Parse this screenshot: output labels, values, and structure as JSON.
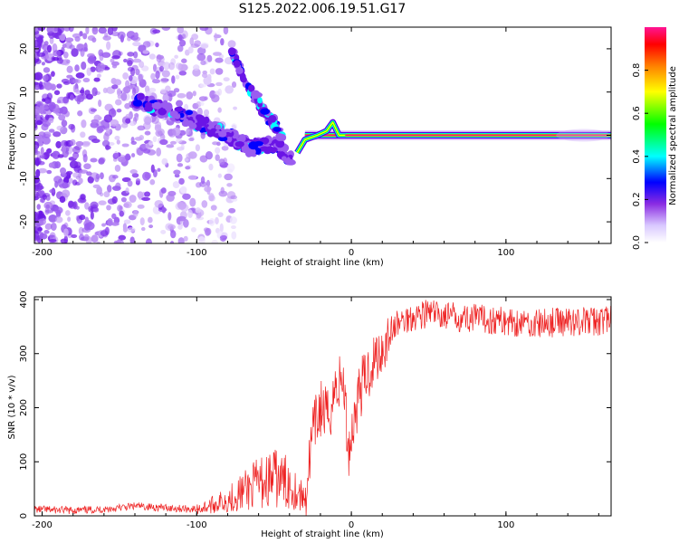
{
  "title": "S125.2022.006.19.51.G17",
  "colors": {
    "snr_line": "#ee2222",
    "colorscale": [
      "#ffffff",
      "#d9c8ff",
      "#8a2be2",
      "#5a00e6",
      "#0000ff",
      "#00ffff",
      "#00ff00",
      "#ffff00",
      "#ff8000",
      "#ff0000",
      "#ff1493"
    ]
  },
  "chart_data": [
    {
      "type": "heatmap",
      "title": "",
      "xlabel": "Height of straight line (km)",
      "ylabel": "Frequency (Hz)",
      "xlim": [
        -205,
        168
      ],
      "ylim": [
        -25,
        25
      ],
      "xticks": [
        -200,
        -100,
        0,
        100
      ],
      "yticks": [
        -20,
        -10,
        0,
        10,
        20
      ],
      "colorbar": {
        "label": "Normalized spectral amplitude",
        "range": [
          0,
          1
        ],
        "ticks": [
          "0.0",
          "0.2",
          "0.4",
          "0.6",
          "0.8"
        ]
      },
      "features": {
        "strong_line": {
          "x_start": -35,
          "x_end": 168,
          "y": 0,
          "amplitude": 1.0
        },
        "peak_ridge": [
          [
            -35,
            -4
          ],
          [
            -30,
            -1
          ],
          [
            -22,
            0
          ],
          [
            -16,
            1
          ],
          [
            -12,
            3
          ],
          [
            -8,
            0
          ],
          [
            -4,
            0
          ]
        ],
        "descending_track": [
          [
            -140,
            8
          ],
          [
            -120,
            6
          ],
          [
            -100,
            3
          ],
          [
            -85,
            1
          ],
          [
            -75,
            -1
          ],
          [
            -65,
            -3
          ],
          [
            -50,
            -2
          ],
          [
            -40,
            -5
          ]
        ],
        "upper_track": [
          [
            -78,
            20
          ],
          [
            -65,
            10
          ],
          [
            -55,
            5
          ],
          [
            -45,
            0
          ]
        ],
        "noise_region": {
          "x_start": -205,
          "x_end": -100,
          "y_range": [
            -25,
            25
          ]
        }
      }
    },
    {
      "type": "line",
      "title": "",
      "xlabel": "Height of straight line (km)",
      "ylabel": "SNR (10 * v/v)",
      "xlim": [
        -205,
        168
      ],
      "ylim": [
        0,
        405
      ],
      "xticks": [
        -200,
        -100,
        0,
        100
      ],
      "yticks": [
        0,
        100,
        200,
        300,
        400
      ],
      "series": [
        {
          "x": [
            -205,
            -180,
            -160,
            -140,
            -120,
            -100,
            -90,
            -80,
            -70,
            -60,
            -50,
            -40,
            -30,
            -25,
            -20,
            -15,
            -10,
            -5,
            -2,
            0,
            5,
            10,
            15,
            20,
            25,
            30,
            40,
            50,
            60,
            80,
            100,
            120,
            140,
            160,
            168
          ],
          "y": [
            12,
            10,
            12,
            18,
            15,
            12,
            20,
            30,
            45,
            60,
            70,
            60,
            30,
            150,
            200,
            180,
            240,
            250,
            120,
            150,
            230,
            260,
            290,
            310,
            340,
            355,
            370,
            375,
            370,
            365,
            360,
            355,
            360,
            360,
            365
          ]
        }
      ]
    }
  ]
}
